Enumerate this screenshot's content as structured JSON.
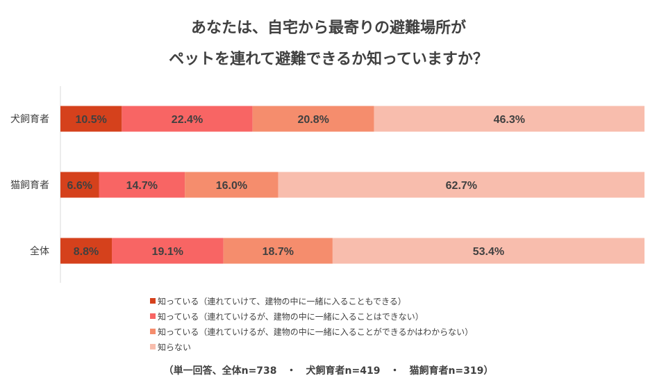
{
  "title_line1": "あなたは、自宅から最寄りの避難場所が",
  "title_line2": "ペットを連れて避難できるか知っていますか？",
  "chart_data": {
    "type": "bar",
    "orientation": "horizontal",
    "stacked": "percent",
    "categories": [
      "犬飼育者",
      "猫飼育者",
      "全体"
    ],
    "series": [
      {
        "name": "知っている（連れていけて、建物の中に一緒に入ることもできる）",
        "color": "#d5411c",
        "values": [
          10.5,
          6.6,
          8.8
        ]
      },
      {
        "name": "知っている（連れていけるが、建物の中に一緒に入ることはできない）",
        "color": "#f86564",
        "values": [
          22.4,
          14.7,
          19.1
        ]
      },
      {
        "name": "知っている（連れていけるが、建物の中に一緒に入ることができるかはわからない）",
        "color": "#f58d6d",
        "values": [
          20.8,
          16.0,
          18.7
        ]
      },
      {
        "name": "知らない",
        "color": "#f8bdad",
        "values": [
          46.3,
          62.7,
          53.4
        ]
      }
    ],
    "value_suffix": "%",
    "xlim": [
      0,
      100
    ],
    "legend_position": "bottom",
    "grid": false
  },
  "footnote": "（単一回答、全体n=738　・　犬飼育者n=419　・　猫飼育者n=319）"
}
